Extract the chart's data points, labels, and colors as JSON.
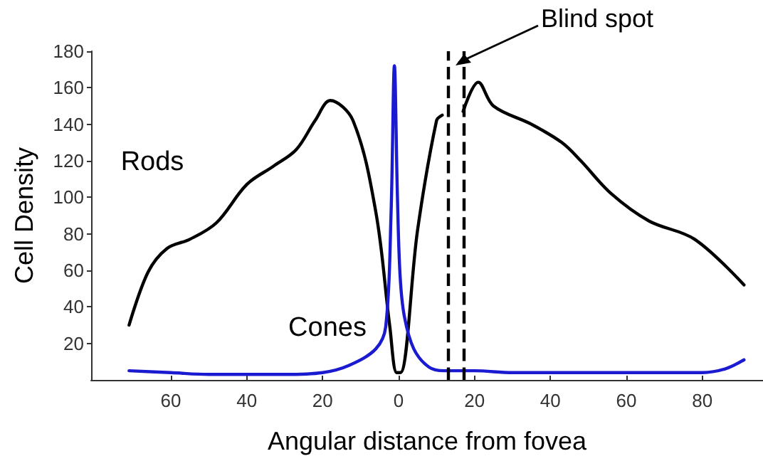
{
  "chart_data": {
    "type": "line",
    "xlabel": "Angular distance from fovea",
    "ylabel": "Cell Density",
    "xlim": [
      -81,
      96
    ],
    "ylim": [
      0,
      180
    ],
    "xticks": [
      {
        "value": -60,
        "label": "60"
      },
      {
        "value": -40,
        "label": "40"
      },
      {
        "value": -20,
        "label": "20"
      },
      0,
      20,
      40,
      60,
      80
    ],
    "yticks": [
      20,
      40,
      60,
      80,
      100,
      120,
      140,
      160,
      180
    ],
    "grid": false,
    "legend": false,
    "marker": "none",
    "line_style": "solid",
    "series": [
      {
        "name": "Rods",
        "color": "#000000",
        "x": [
          -71,
          -66,
          -61,
          -55,
          -48,
          -40,
          -33,
          -27,
          -22,
          -18,
          -12,
          -6,
          -2.3,
          -0.5,
          0.5,
          5,
          10,
          11.5,
          12.5,
          17,
          21,
          25,
          35,
          43,
          48,
          56,
          66,
          78,
          91
        ],
        "values": [
          30,
          59,
          72,
          77,
          86,
          107,
          117,
          126,
          142,
          153,
          142,
          92,
          29,
          4,
          4,
          82,
          142,
          145,
          null,
          147,
          163,
          150,
          140,
          130,
          120,
          102,
          87,
          77,
          52
        ]
      },
      {
        "name": "Cones",
        "color": "#1a1ad0",
        "x": [
          -71,
          -60,
          -50,
          -40,
          -30,
          -20,
          -13,
          -6,
          -3.4,
          -2,
          -1.1,
          -0.3,
          0.4,
          1.5,
          4,
          8,
          12,
          20,
          30,
          40,
          50,
          60,
          70,
          80,
          86,
          91
        ],
        "values": [
          5,
          4,
          3,
          3,
          3,
          4,
          8,
          17,
          29,
          90,
          172,
          100,
          57,
          35,
          17,
          7,
          5,
          5,
          4,
          4,
          4,
          4,
          4,
          4,
          6,
          11
        ]
      }
    ],
    "ref_lines": [
      {
        "axis": "x",
        "value": 13,
        "line_style": "dashed",
        "color": "#000000"
      },
      {
        "axis": "x",
        "value": 17,
        "line_style": "dashed",
        "color": "#000000"
      }
    ],
    "annotations": [
      "Blind spot"
    ]
  }
}
